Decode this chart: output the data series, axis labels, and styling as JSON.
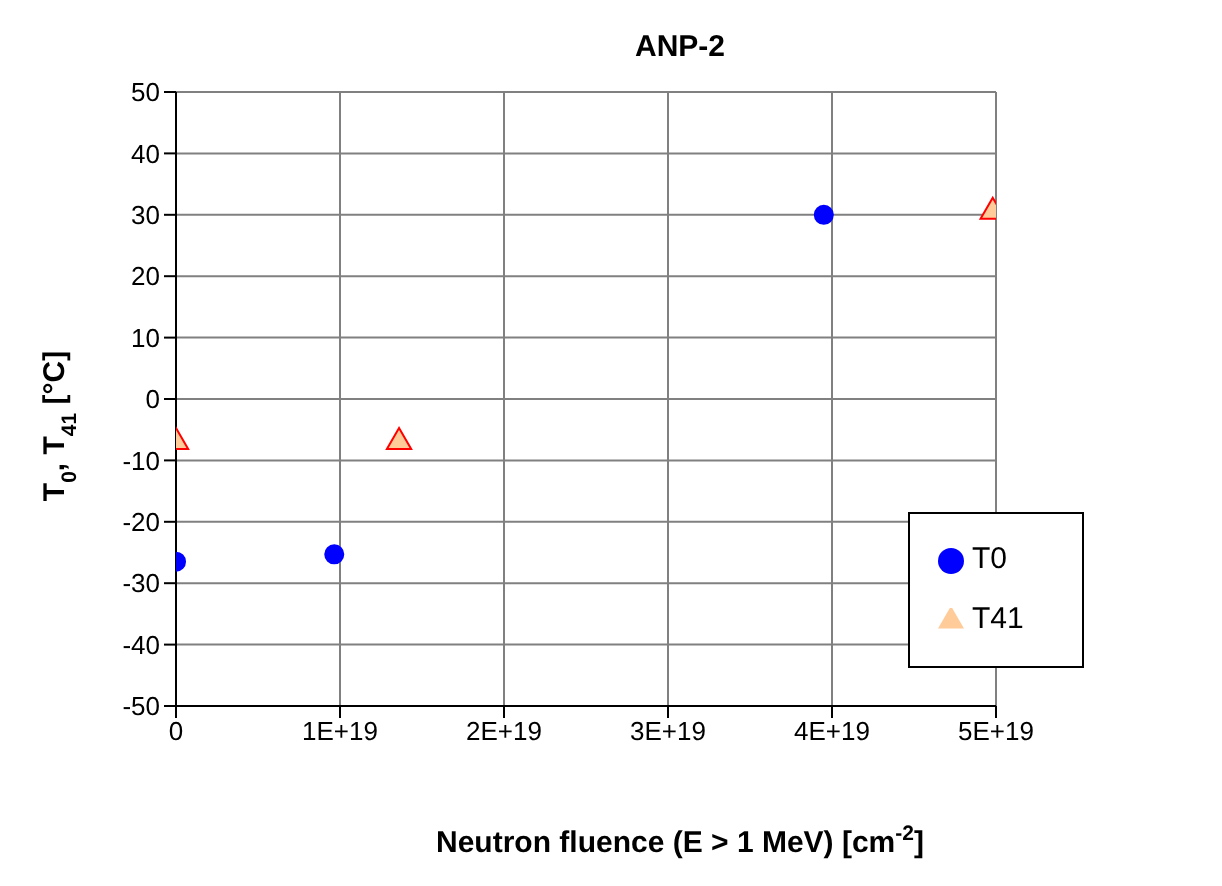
{
  "chart_data": {
    "type": "scatter",
    "title": "ANP-2",
    "xlabel": "Neutron fluence (E > 1 MeV) [cm$^{-2}$]",
    "ylabel": "T$_{0}$, T$_{41}$ [°C]",
    "xlim": [
      0,
      5e+19
    ],
    "xticks": [
      0,
      {
        "value": 1e+19,
        "label": "1E+19"
      },
      {
        "value": 2e+19,
        "label": "2E+19"
      },
      {
        "value": 3e+19,
        "label": "3E+19"
      },
      {
        "value": 4e+19,
        "label": "4E+19"
      },
      {
        "value": 5e+19,
        "label": "5E+19"
      }
    ],
    "ylim": [
      -50,
      50
    ],
    "yticks": [
      -50,
      -40,
      -30,
      -20,
      -10,
      0,
      10,
      20,
      30,
      40,
      50
    ],
    "grid": true,
    "legend": "bottom right",
    "series": [
      {
        "name": "T0",
        "color": "#0000ff",
        "marker": "circle",
        "x": [
          0,
          9.65e+18,
          3.95e+19
        ],
        "values": [
          -26.5,
          -25.3,
          30
        ]
      },
      {
        "name": "T41",
        "color": "#ffcc99",
        "marker": "triangle",
        "x": [
          0,
          1.36e+19,
          4.98e+19
        ],
        "values": [
          -7,
          -7,
          30.5
        ]
      }
    ]
  }
}
